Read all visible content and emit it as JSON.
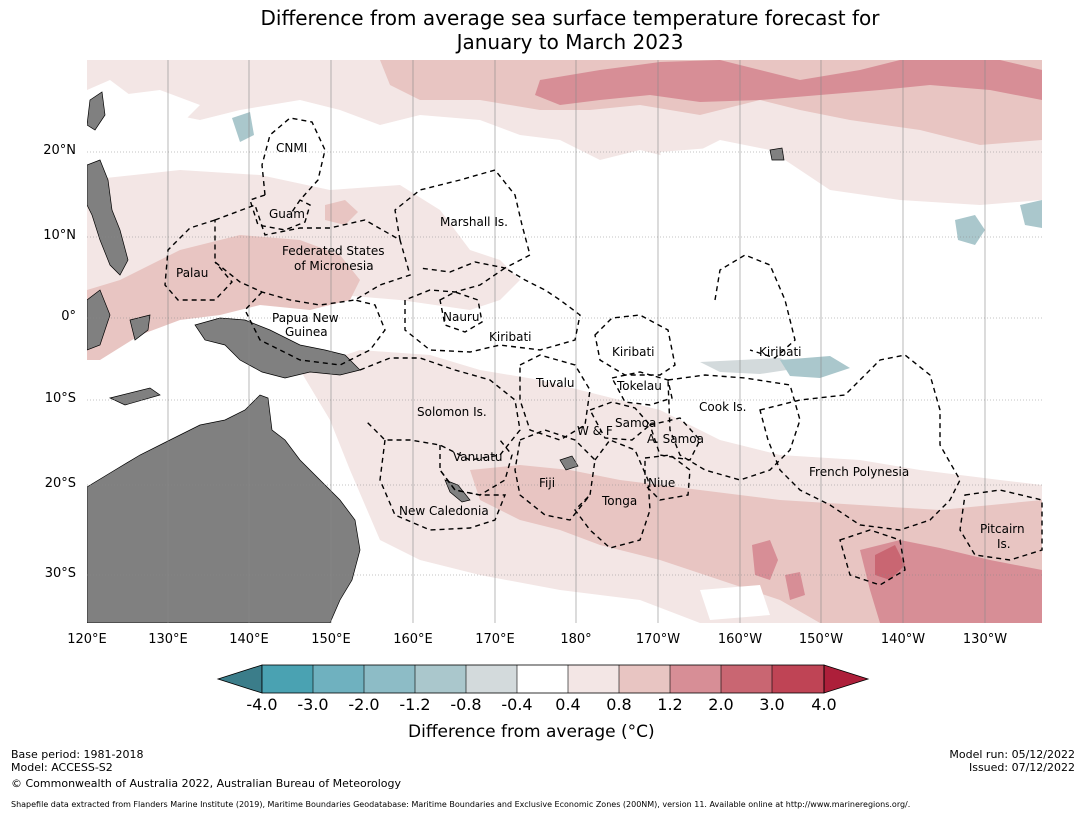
{
  "title": {
    "line1": "Difference from average sea surface temperature forecast for",
    "line2": "January to March 2023"
  },
  "map": {
    "latitude_labels": [
      "20°N",
      "10°N",
      "0°",
      "10°S",
      "20°S",
      "30°S"
    ],
    "longitude_labels": [
      "120°E",
      "130°E",
      "140°E",
      "150°E",
      "160°E",
      "170°E",
      "180°",
      "170°W",
      "160°W",
      "150°W",
      "140°W",
      "130°W"
    ],
    "region_labels": {
      "cnmi": "CNMI",
      "guam": "Guam",
      "marshall": "Marshall Is.",
      "fsm_1": "Federated States",
      "fsm_2": "of Micronesia",
      "palau": "Palau",
      "png_1": "Papua New",
      "png_2": "Guinea",
      "nauru": "Nauru",
      "kiribati_w": "Kiribati",
      "kiribati_c": "Kiribati",
      "kiribati_e": "Kiribati",
      "tuvalu": "Tuvalu",
      "tokelau": "Tokelau",
      "cook": "Cook Is.",
      "solomon": "Solomon Is.",
      "samoa": "Samoa",
      "wf": "W & F",
      "asamoa": "A. Samoa",
      "vanuatu": "Vanuatu",
      "fiji": "Fiji",
      "niue": "Niue",
      "tonga": "Tonga",
      "newcal": "New Caledonia",
      "frenchpoly": "French Polynesia",
      "pitcairn_1": "Pitcairn",
      "pitcairn_2": "Is."
    },
    "colors": {
      "land": "#808080",
      "c_04_08": "#f3e6e5",
      "c_08_12": "#e8c5c2",
      "c_12_20": "#d78e96",
      "c_20_30": "#c96672",
      "neg_08_04": "#d3dadc",
      "neg_12_08": "#a9c6cb"
    }
  },
  "colorbar": {
    "label": "Difference from average (°C)",
    "ticks": [
      "-4.0",
      "-3.0",
      "-2.0",
      "-1.2",
      "-0.8",
      "-0.4",
      "0.4",
      "0.8",
      "1.2",
      "2.0",
      "3.0",
      "4.0"
    ],
    "colors": [
      "#3b7d8a",
      "#4aa2b2",
      "#6fb1bf",
      "#8dbcc6",
      "#aac7cc",
      "#d3dadc",
      "#ffffff",
      "#f3e6e5",
      "#e8c5c2",
      "#d78e96",
      "#c96672",
      "#bf4455",
      "#ad1f3a"
    ]
  },
  "footer": {
    "base_period": "Base period: 1981-2018",
    "model": "Model: ACCESS-S2",
    "copyright": "© Commonwealth of Australia 2022, Australian Bureau of Meteorology",
    "model_run": "Model run: 05/12/2022",
    "issued": "Issued: 07/12/2022",
    "shapefile": "Shapefile data extracted from Flanders Marine Institute (2019), Maritime Boundaries Geodatabase: Maritime Boundaries and Exclusive Economic Zones (200NM), version 11. Available online at http://www.marineregions.org/."
  }
}
